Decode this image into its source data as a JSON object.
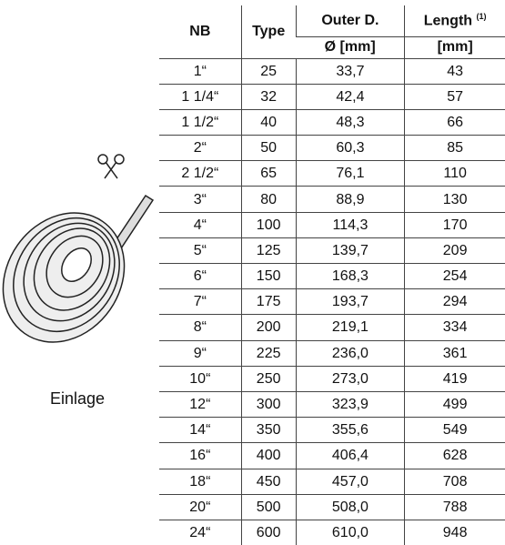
{
  "figure": {
    "label": "Einlage"
  },
  "table": {
    "header": {
      "nb": "NB",
      "type": "Type",
      "outer": "Outer D.",
      "outer_unit": "Ø [mm]",
      "length": "Length",
      "length_note": "(1)",
      "length_unit": "[mm]"
    },
    "rows": [
      [
        "1“",
        "25",
        "33,7",
        "43"
      ],
      [
        "1 1/4“",
        "32",
        "42,4",
        "57"
      ],
      [
        "1 1/2“",
        "40",
        "48,3",
        "66"
      ],
      [
        "2“",
        "50",
        "60,3",
        "85"
      ],
      [
        "2 1/2“",
        "65",
        "76,1",
        "110"
      ],
      [
        "3“",
        "80",
        "88,9",
        "130"
      ],
      [
        "4“",
        "100",
        "114,3",
        "170"
      ],
      [
        "5“",
        "125",
        "139,7",
        "209"
      ],
      [
        "6“",
        "150",
        "168,3",
        "254"
      ],
      [
        "7“",
        "175",
        "193,7",
        "294"
      ],
      [
        "8“",
        "200",
        "219,1",
        "334"
      ],
      [
        "9“",
        "225",
        "236,0",
        "361"
      ],
      [
        "10“",
        "250",
        "273,0",
        "419"
      ],
      [
        "12“",
        "300",
        "323,9",
        "499"
      ],
      [
        "14“",
        "350",
        "355,6",
        "549"
      ],
      [
        "16“",
        "400",
        "406,4",
        "628"
      ],
      [
        "18“",
        "450",
        "457,0",
        "708"
      ],
      [
        "20“",
        "500",
        "508,0",
        "788"
      ],
      [
        "24“",
        "600",
        "610,0",
        "948"
      ]
    ]
  }
}
